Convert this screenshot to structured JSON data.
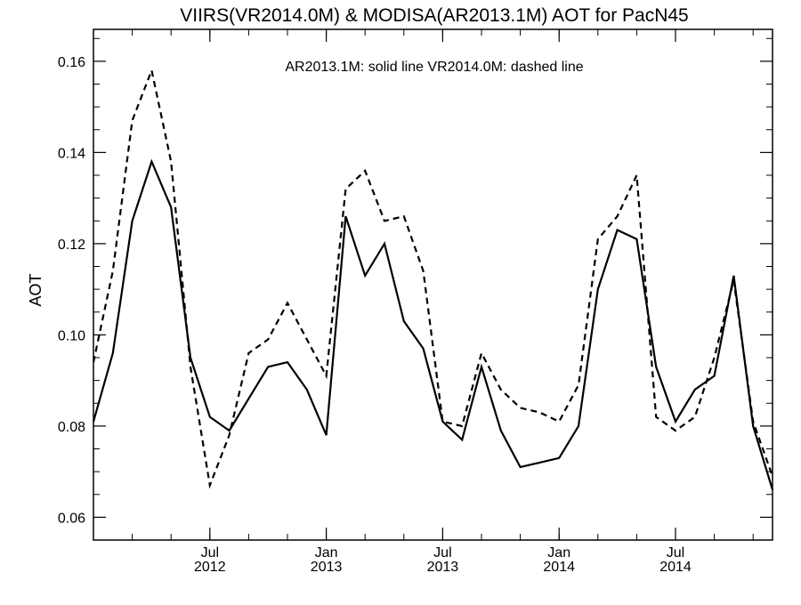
{
  "chart_data": {
    "type": "line",
    "title": "VIIRS(VR2014.0M) & MODISA(AR2013.1M)  AOT for PacN45",
    "annotation": "AR2013.1M: solid line   VR2014.0M: dashed line",
    "ylabel": "AOT",
    "xlabel": "",
    "ylim": [
      0.055,
      0.167
    ],
    "xlim": [
      "2012-01-01",
      "2014-12-01"
    ],
    "yticks": [
      0.06,
      0.08,
      0.1,
      0.12,
      0.14,
      0.16
    ],
    "ytick_labels": [
      "0.06",
      "0.08",
      "0.10",
      "0.12",
      "0.14",
      "0.16"
    ],
    "xticks": [
      {
        "date": "2012-07-01",
        "month": "Jul",
        "year": "2012"
      },
      {
        "date": "2013-01-01",
        "month": "Jan",
        "year": "2013"
      },
      {
        "date": "2013-07-01",
        "month": "Jul",
        "year": "2013"
      },
      {
        "date": "2014-01-01",
        "month": "Jan",
        "year": "2014"
      },
      {
        "date": "2014-07-01",
        "month": "Jul",
        "year": "2014"
      }
    ],
    "grid": false,
    "x": [
      "2012-01",
      "2012-02",
      "2012-03",
      "2012-04",
      "2012-05",
      "2012-06",
      "2012-07",
      "2012-08",
      "2012-09",
      "2012-10",
      "2012-11",
      "2012-12",
      "2013-01",
      "2013-02",
      "2013-03",
      "2013-04",
      "2013-05",
      "2013-06",
      "2013-07",
      "2013-08",
      "2013-09",
      "2013-10",
      "2013-11",
      "2013-12",
      "2014-01",
      "2014-02",
      "2014-03",
      "2014-04",
      "2014-05",
      "2014-06",
      "2014-07",
      "2014-08",
      "2014-09",
      "2014-10",
      "2014-11",
      "2014-12"
    ],
    "series": [
      {
        "name": "AR2013.1M",
        "style": "solid",
        "color": "#000000",
        "values": [
          0.081,
          0.096,
          0.125,
          0.138,
          0.128,
          0.095,
          0.082,
          0.079,
          0.086,
          0.093,
          0.094,
          0.088,
          0.078,
          0.126,
          0.113,
          0.12,
          0.103,
          0.097,
          0.081,
          0.077,
          0.093,
          0.079,
          0.071,
          0.072,
          0.073,
          0.08,
          0.11,
          0.123,
          0.121,
          0.093,
          0.081,
          0.088,
          0.091,
          0.113,
          0.08,
          0.066
        ]
      },
      {
        "name": "VR2014.0M",
        "style": "dashed",
        "color": "#000000",
        "values": [
          0.094,
          0.114,
          0.147,
          0.158,
          0.138,
          0.093,
          0.067,
          0.078,
          0.096,
          0.099,
          0.107,
          0.099,
          0.091,
          0.132,
          0.136,
          0.125,
          0.126,
          0.114,
          0.081,
          0.08,
          0.096,
          0.088,
          0.084,
          0.083,
          0.081,
          0.089,
          0.121,
          0.126,
          0.135,
          0.082,
          0.079,
          0.082,
          0.095,
          0.112,
          0.081,
          0.069
        ]
      }
    ]
  }
}
